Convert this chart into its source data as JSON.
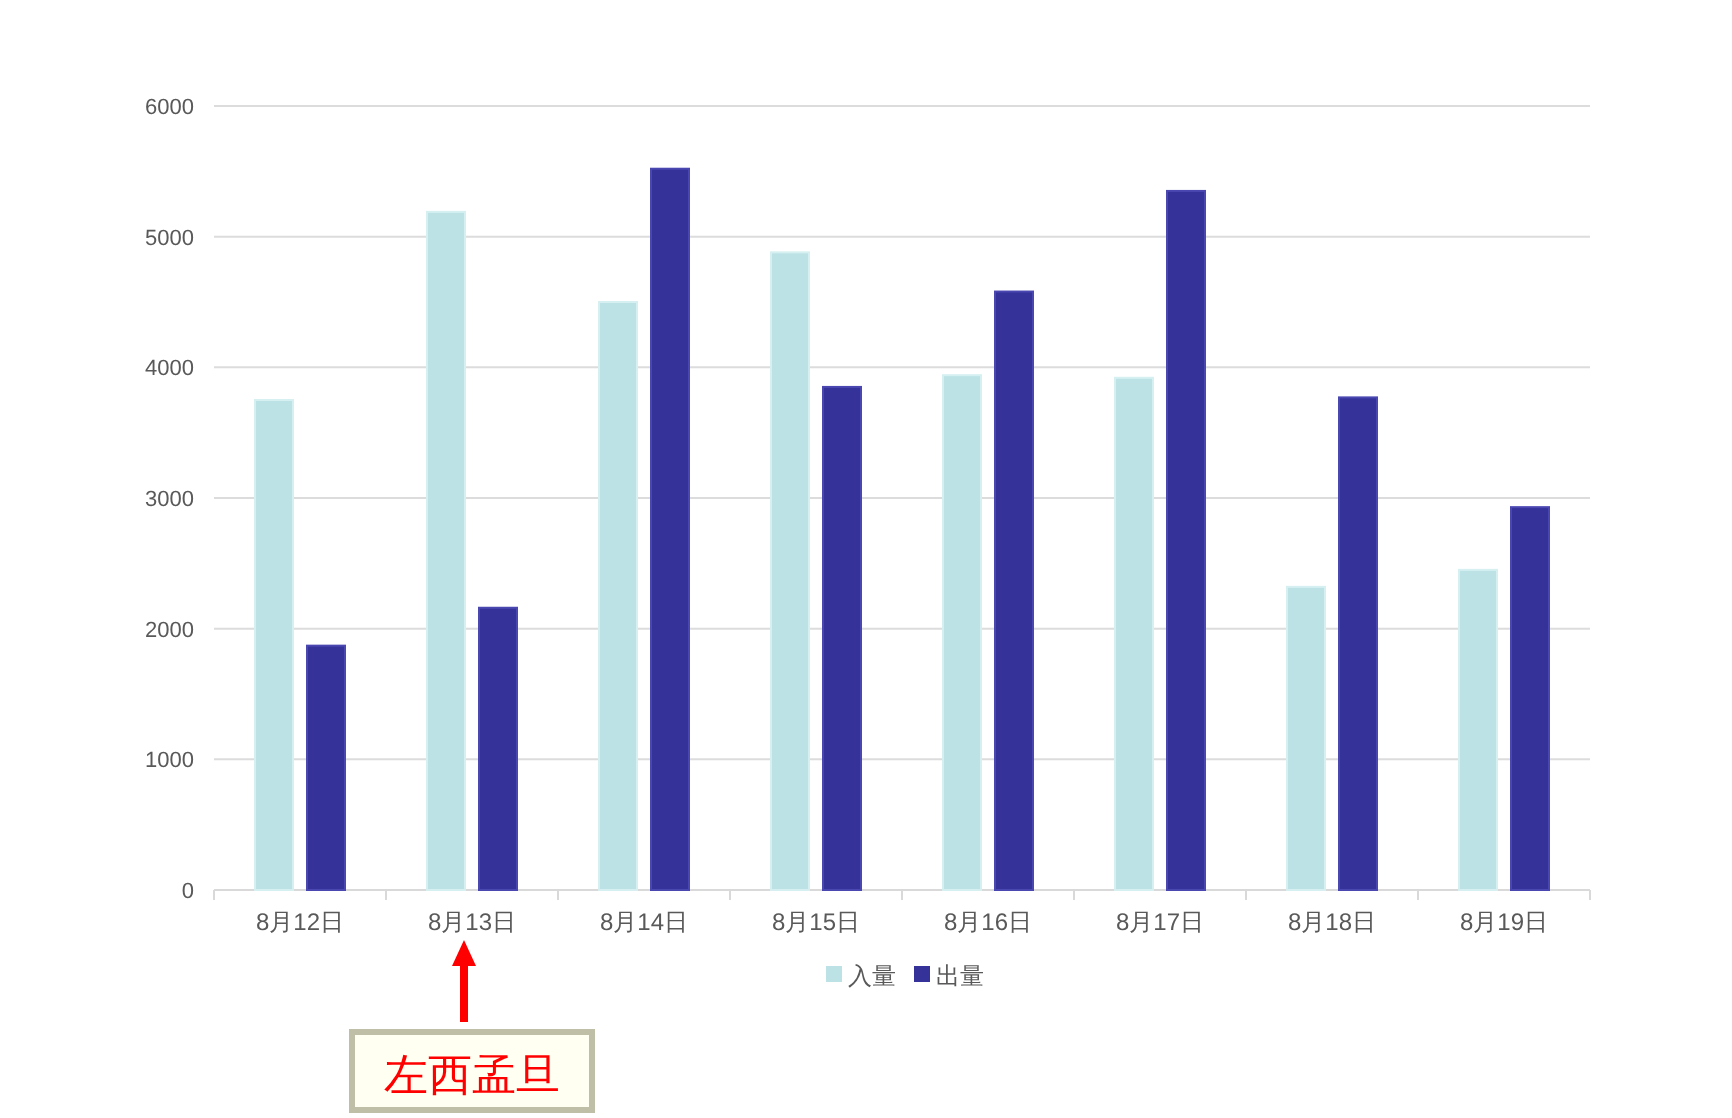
{
  "chart_data": {
    "type": "bar",
    "categories": [
      "8月12日",
      "8月13日",
      "8月14日",
      "8月15日",
      "8月16日",
      "8月17日",
      "8月18日",
      "8月19日"
    ],
    "series": [
      {
        "name": "入量",
        "color": "#bce2e6",
        "values": [
          3750,
          5190,
          4500,
          4880,
          3940,
          3920,
          2320,
          2450
        ]
      },
      {
        "name": "出量",
        "color": "#35329a",
        "values": [
          1870,
          2160,
          5520,
          3850,
          4580,
          5350,
          3770,
          2930
        ]
      }
    ],
    "ylim": [
      0,
      6000
    ],
    "yticks": [
      0,
      1000,
      2000,
      3000,
      4000,
      5000,
      6000
    ],
    "grid": "y",
    "legend": "bottom",
    "annotations": [
      "左西孟旦"
    ]
  }
}
